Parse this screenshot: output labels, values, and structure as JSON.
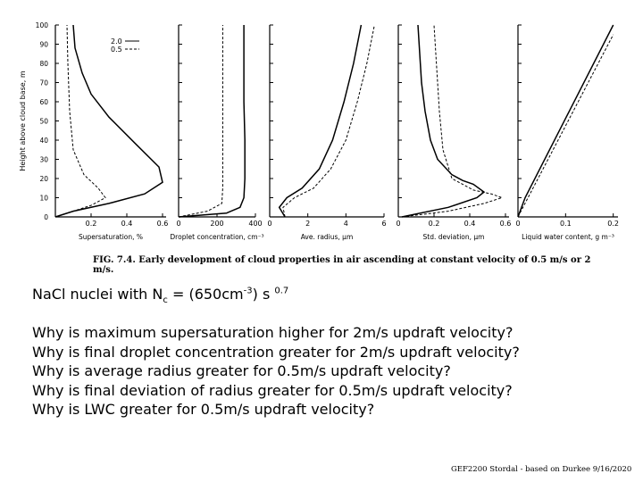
{
  "caption": "FIG. 7.4. Early development of cloud properties in air ascending at constant velocity of 0.5 m/s or 2 m/s.",
  "nuclei_line": {
    "prefix": "NaCl nuclei with N",
    "sub": "c",
    "middle": " = (650cm",
    "exp": "-3",
    "after": ") s ",
    "power": "0.7"
  },
  "questions": [
    "Why is maximum supersaturation higher for 2m/s updraft velocity?",
    "Why is final droplet concentration greater for 2m/s updraft velocity?",
    "Why is average radius greater for 0.5m/s updraft velocity?",
    "Why is final deviation of radius greater for 0.5m/s updraft velocity?",
    "Why is LWC greater for 0.5m/s updraft velocity?"
  ],
  "footer": "GEF2200 Stordal - based on Durkee 9/16/2020",
  "chart_data": [
    {
      "type": "line",
      "ylabel": "Height above cloud base, m",
      "yticks": [
        "0",
        "10",
        "20",
        "30",
        "40",
        "50",
        "60",
        "70",
        "80",
        "90",
        "100"
      ],
      "ylim": [
        0,
        100
      ],
      "xlabel": "Supersaturation, %",
      "xticks": [
        "0.2",
        "0.4",
        "0.6"
      ],
      "xlim": [
        0,
        0.62
      ],
      "legend": {
        "placement": "top-right",
        "entries": [
          {
            "label": "2.0",
            "style": "solid"
          },
          {
            "label": "0.5",
            "style": "dashed"
          }
        ]
      },
      "series": [
        {
          "name": "2.0",
          "style": "solid",
          "x": [
            0,
            0.1,
            0.3,
            0.5,
            0.6,
            0.58,
            0.45,
            0.3,
            0.2,
            0.15,
            0.11,
            0.1
          ],
          "y": [
            0,
            3,
            7,
            12,
            18,
            26,
            38,
            52,
            64,
            75,
            88,
            100
          ]
        },
        {
          "name": "0.5",
          "style": "dashed",
          "x": [
            0,
            0.1,
            0.2,
            0.28,
            0.24,
            0.16,
            0.1,
            0.08,
            0.07,
            0.065
          ],
          "y": [
            0,
            3,
            6,
            10,
            15,
            22,
            35,
            55,
            80,
            100
          ]
        }
      ]
    },
    {
      "type": "line",
      "xlabel": "Droplet concentration, cm⁻³",
      "xticks": [
        "0",
        "200",
        "400"
      ],
      "xlim": [
        0,
        400
      ],
      "ylim": [
        0,
        100
      ],
      "series": [
        {
          "name": "2.0",
          "style": "solid",
          "x": [
            0,
            250,
            320,
            340,
            345,
            345,
            340,
            340,
            340
          ],
          "y": [
            0,
            2,
            5,
            10,
            20,
            40,
            60,
            80,
            100
          ]
        },
        {
          "name": "0.5",
          "style": "dashed",
          "x": [
            0,
            150,
            225,
            230,
            230,
            230,
            230
          ],
          "y": [
            0,
            3,
            7,
            15,
            40,
            70,
            100
          ]
        }
      ]
    },
    {
      "type": "line",
      "xlabel": "Ave. radius, μm",
      "xticks": [
        "0",
        "2",
        "4",
        "6"
      ],
      "xlim": [
        0,
        6
      ],
      "ylim": [
        0,
        100
      ],
      "series": [
        {
          "name": "2.0",
          "style": "solid",
          "x": [
            0.8,
            0.5,
            0.9,
            1.7,
            2.6,
            3.3,
            3.9,
            4.4,
            4.8
          ],
          "y": [
            0,
            5,
            10,
            15,
            25,
            40,
            60,
            80,
            100
          ]
        },
        {
          "name": "0.5",
          "style": "dashed",
          "x": [
            0.8,
            0.7,
            1.3,
            2.3,
            3.2,
            4.0,
            4.6,
            5.1,
            5.5
          ],
          "y": [
            0,
            5,
            10,
            15,
            25,
            40,
            60,
            80,
            100
          ]
        }
      ]
    },
    {
      "type": "line",
      "xlabel": "Std. deviation, μm",
      "xticks": [
        "0",
        "0.2",
        "0.4",
        "0.6"
      ],
      "xlim": [
        0,
        0.62
      ],
      "ylim": [
        0,
        100
      ],
      "series": [
        {
          "name": "2.0",
          "style": "solid",
          "x": [
            0.02,
            0.28,
            0.44,
            0.48,
            0.42,
            0.36,
            0.3,
            0.22,
            0.18,
            0.15,
            0.13,
            0.12,
            0.11
          ],
          "y": [
            0,
            5,
            10,
            13,
            17,
            19,
            22,
            30,
            40,
            55,
            70,
            85,
            100
          ]
        },
        {
          "name": "0.5",
          "style": "dashed",
          "x": [
            0.02,
            0.28,
            0.48,
            0.58,
            0.52,
            0.42,
            0.3,
            0.25,
            0.23,
            0.22,
            0.21,
            0.2
          ],
          "y": [
            0,
            3,
            7,
            10,
            12,
            14,
            20,
            35,
            55,
            70,
            85,
            100
          ]
        }
      ]
    },
    {
      "type": "line",
      "xlabel": "Liquid water content, g m⁻³",
      "xticks": [
        "0",
        "0.1",
        "0.2"
      ],
      "xlim": [
        0,
        0.21
      ],
      "ylim": [
        0,
        100
      ],
      "series": [
        {
          "name": "2.0",
          "style": "solid",
          "x": [
            0,
            0.015,
            0.2
          ],
          "y": [
            0,
            10,
            100
          ]
        },
        {
          "name": "0.5",
          "style": "dashed",
          "x": [
            0,
            0.2
          ],
          "y": [
            0,
            95
          ]
        }
      ]
    }
  ]
}
